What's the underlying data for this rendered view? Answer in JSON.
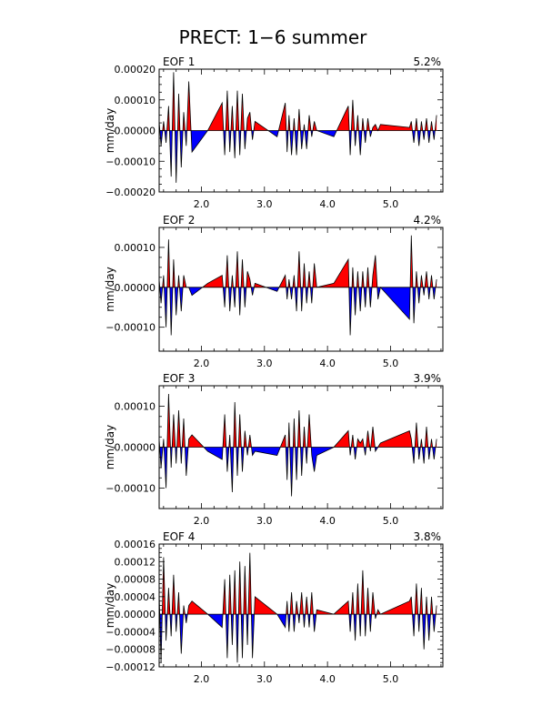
{
  "title": "PRECT: 1−6 summer",
  "colors": {
    "positive": "#ff0000",
    "negative": "#0000ff",
    "line": "#000000"
  },
  "chart_data": {
    "type": "area",
    "xlim": [
      1.33,
      5.83
    ],
    "x_ticks": [
      2.0,
      3.0,
      4.0,
      5.0
    ],
    "x_tick_labels": [
      "2.0",
      "3.0",
      "4.0",
      "5.0"
    ],
    "panels": [
      {
        "label": "EOF 1",
        "variance": "5.2%",
        "ylabel": "mm/day",
        "ylim": [
          -0.0002,
          0.0002
        ],
        "y_ticks": [
          -0.0002,
          -0.0001,
          0.0,
          0.0001,
          0.0002
        ],
        "y_tick_labels": [
          "−0.00020",
          "−0.00010",
          "0.00000",
          "0.00010",
          "0.00020"
        ],
        "x": [
          1.33,
          1.36,
          1.4,
          1.44,
          1.48,
          1.52,
          1.56,
          1.6,
          1.64,
          1.68,
          1.72,
          1.76,
          1.8,
          1.85,
          2.1,
          2.33,
          2.37,
          2.41,
          2.45,
          2.49,
          2.53,
          2.57,
          2.61,
          2.65,
          2.69,
          2.73,
          2.77,
          2.81,
          2.85,
          3.2,
          3.33,
          3.36,
          3.39,
          3.43,
          3.47,
          3.51,
          3.55,
          3.59,
          3.63,
          3.67,
          3.71,
          3.75,
          3.79,
          3.83,
          4.1,
          4.33,
          4.36,
          4.4,
          4.44,
          4.48,
          4.52,
          4.56,
          4.6,
          4.64,
          4.68,
          4.72,
          4.76,
          4.8,
          4.84,
          5.3,
          5.33,
          5.37,
          5.41,
          5.45,
          5.49,
          5.53,
          5.57,
          5.61,
          5.65,
          5.69,
          5.73
        ],
        "values": [
          3e-05,
          -5e-05,
          3e-05,
          -4e-05,
          8e-05,
          -0.00015,
          0.00019,
          -0.00017,
          0.00012,
          -0.00012,
          6e-05,
          -5e-05,
          0.00016,
          -7e-05,
          0.0,
          9e-05,
          -8e-05,
          0.00013,
          -7e-05,
          8e-05,
          -9e-05,
          0.00013,
          -8e-05,
          0.00012,
          -6e-05,
          4e-05,
          6e-05,
          -3e-05,
          3e-05,
          -2e-05,
          9e-05,
          -7e-05,
          5e-05,
          -8e-05,
          4e-05,
          -8e-05,
          7e-05,
          -6e-05,
          2e-05,
          -6e-05,
          5e-05,
          -2e-05,
          3e-05,
          0.0,
          -2e-05,
          8e-05,
          -8e-05,
          0.0001,
          -5e-05,
          5e-05,
          -8e-05,
          4e-05,
          -4e-05,
          4e-05,
          -2e-05,
          1e-05,
          2e-05,
          0.0,
          2e-05,
          1e-05,
          3e-05,
          -4e-05,
          4e-05,
          -5e-05,
          3e-05,
          -3e-05,
          4e-05,
          -4e-05,
          3e-05,
          -3e-05,
          5e-05
        ]
      },
      {
        "label": "EOF 2",
        "variance": "4.2%",
        "ylabel": "mm/day",
        "ylim": [
          -0.00016,
          0.00015
        ],
        "y_ticks": [
          -0.0001,
          0.0,
          0.0001
        ],
        "y_tick_labels": [
          "−0.00010",
          "0.00000",
          "0.00010"
        ],
        "x": [
          1.33,
          1.36,
          1.4,
          1.44,
          1.48,
          1.52,
          1.56,
          1.6,
          1.64,
          1.68,
          1.72,
          1.76,
          1.8,
          1.85,
          2.1,
          2.33,
          2.37,
          2.41,
          2.45,
          2.49,
          2.53,
          2.57,
          2.61,
          2.65,
          2.69,
          2.73,
          2.77,
          2.81,
          2.85,
          3.2,
          3.33,
          3.36,
          3.39,
          3.43,
          3.47,
          3.51,
          3.55,
          3.59,
          3.63,
          3.67,
          3.71,
          3.75,
          3.79,
          3.83,
          4.1,
          4.33,
          4.36,
          4.4,
          4.44,
          4.48,
          4.52,
          4.56,
          4.6,
          4.64,
          4.68,
          4.72,
          4.76,
          4.8,
          4.84,
          5.3,
          5.33,
          5.37,
          5.41,
          5.45,
          5.49,
          5.53,
          5.57,
          5.61,
          5.65,
          5.69,
          5.73
        ],
        "values": [
          2e-05,
          -4e-05,
          3e-05,
          -0.0001,
          0.00012,
          -0.00012,
          7e-05,
          -7e-05,
          3e-05,
          -6e-05,
          3e-05,
          0.0,
          0.0,
          -2e-05,
          1e-05,
          3e-05,
          -5e-05,
          8e-05,
          -6e-05,
          3e-05,
          -5e-05,
          9e-05,
          -7e-05,
          7e-05,
          -5e-05,
          4e-05,
          2e-05,
          -2e-05,
          1e-05,
          -1e-05,
          3e-05,
          -3e-05,
          2e-05,
          -3e-05,
          3e-05,
          -6e-05,
          9e-05,
          -6e-05,
          6e-05,
          -4e-05,
          4e-05,
          -4e-05,
          6e-05,
          0.0,
          1e-05,
          7e-05,
          -0.00012,
          5e-05,
          -7e-05,
          4e-05,
          -6e-05,
          4e-05,
          -5e-05,
          5e-05,
          -5e-05,
          3e-05,
          8e-05,
          -3e-05,
          0.0,
          -8e-05,
          0.00013,
          -9e-05,
          4e-05,
          -4e-05,
          3e-05,
          -2e-05,
          4e-05,
          -3e-05,
          3e-05,
          -3e-05,
          2e-05
        ]
      },
      {
        "label": "EOF 3",
        "variance": "3.9%",
        "ylabel": "mm/day",
        "ylim": [
          -0.00015,
          0.00015
        ],
        "y_ticks": [
          -0.0001,
          0.0,
          0.0001
        ],
        "y_tick_labels": [
          "−0.00010",
          "0.00000",
          "0.00010"
        ],
        "x": [
          1.33,
          1.36,
          1.4,
          1.44,
          1.48,
          1.52,
          1.56,
          1.6,
          1.64,
          1.68,
          1.72,
          1.76,
          1.8,
          1.85,
          2.1,
          2.33,
          2.37,
          2.41,
          2.45,
          2.49,
          2.53,
          2.57,
          2.61,
          2.65,
          2.69,
          2.73,
          2.77,
          2.81,
          2.85,
          3.2,
          3.33,
          3.36,
          3.39,
          3.43,
          3.47,
          3.51,
          3.55,
          3.59,
          3.63,
          3.67,
          3.71,
          3.75,
          3.79,
          3.83,
          4.1,
          4.33,
          4.36,
          4.4,
          4.44,
          4.48,
          4.52,
          4.56,
          4.6,
          4.64,
          4.68,
          4.72,
          4.76,
          4.8,
          4.84,
          5.3,
          5.33,
          5.37,
          5.41,
          5.45,
          5.49,
          5.53,
          5.57,
          5.61,
          5.65,
          5.69,
          5.73
        ],
        "values": [
          2e-05,
          -5e-05,
          2e-05,
          -0.0001,
          0.00013,
          -5e-05,
          8e-05,
          -4e-05,
          9e-05,
          -4e-05,
          7e-05,
          -7e-05,
          2e-05,
          3e-05,
          -1e-05,
          -3e-05,
          8e-05,
          -6e-05,
          3e-05,
          -0.00011,
          0.00011,
          -7e-05,
          8e-05,
          -6e-05,
          4e-05,
          -2e-05,
          3e-05,
          -2e-05,
          -1e-05,
          -2e-05,
          3e-05,
          -8e-05,
          6e-05,
          -0.00012,
          7e-05,
          -8e-05,
          9e-05,
          -7e-05,
          5e-05,
          -4e-05,
          8e-05,
          -2e-05,
          -6e-05,
          -2e-05,
          0.0,
          4e-05,
          -2e-05,
          3e-05,
          -3e-05,
          2e-05,
          1e-05,
          2e-05,
          -2e-05,
          4e-05,
          -1e-05,
          5e-05,
          -1e-05,
          0.0,
          1e-05,
          4e-05,
          2e-05,
          -4e-05,
          6e-05,
          -3e-05,
          2e-05,
          -4e-05,
          5e-05,
          -3e-05,
          2e-05,
          -3e-05,
          2e-05
        ]
      },
      {
        "label": "EOF 4",
        "variance": "3.8%",
        "ylabel": "mm/day",
        "ylim": [
          -0.00012,
          0.00016
        ],
        "y_ticks": [
          -0.00012,
          -8e-05,
          -4e-05,
          0.0,
          4e-05,
          8e-05,
          0.00012,
          0.00016
        ],
        "y_tick_labels": [
          "−0.00012",
          "−0.00008",
          "−0.00004",
          "0.00000",
          "0.00004",
          "0.00008",
          "0.00012",
          "0.00016"
        ],
        "x": [
          1.33,
          1.36,
          1.4,
          1.44,
          1.48,
          1.52,
          1.56,
          1.6,
          1.64,
          1.68,
          1.72,
          1.76,
          1.8,
          1.85,
          2.1,
          2.33,
          2.37,
          2.41,
          2.45,
          2.49,
          2.53,
          2.57,
          2.61,
          2.65,
          2.69,
          2.73,
          2.77,
          2.81,
          2.85,
          3.2,
          3.33,
          3.36,
          3.39,
          3.43,
          3.47,
          3.51,
          3.55,
          3.59,
          3.63,
          3.67,
          3.71,
          3.75,
          3.79,
          3.83,
          4.1,
          4.33,
          4.36,
          4.4,
          4.44,
          4.48,
          4.52,
          4.56,
          4.6,
          4.64,
          4.68,
          4.72,
          4.76,
          4.8,
          4.84,
          5.3,
          5.33,
          5.37,
          5.41,
          5.45,
          5.49,
          5.53,
          5.57,
          5.61,
          5.65,
          5.69,
          5.73
        ],
        "values": [
          5e-05,
          -0.00011,
          0.00013,
          -6e-05,
          6e-05,
          -5e-05,
          9e-05,
          -4e-05,
          5e-05,
          -9e-05,
          2e-05,
          -2e-05,
          2e-05,
          3e-05,
          0.0,
          -3e-05,
          8e-05,
          -0.0001,
          9e-05,
          -7e-05,
          0.0001,
          -0.00011,
          0.00012,
          -0.0001,
          0.00011,
          -7e-05,
          0.00014,
          -0.0001,
          4e-05,
          0.0,
          -3e-05,
          3e-05,
          -4e-05,
          5e-05,
          -4e-05,
          3e-05,
          -2e-05,
          5e-05,
          -3e-05,
          4e-05,
          -3e-05,
          5e-05,
          -4e-05,
          1e-05,
          0.0,
          3e-05,
          -4e-05,
          5e-05,
          -6e-05,
          7e-05,
          -5e-05,
          0.0001,
          -5e-05,
          6e-05,
          -4e-05,
          5e-05,
          -1e-05,
          1e-05,
          0.0,
          3e-05,
          4e-05,
          -5e-05,
          7e-05,
          -4e-05,
          6e-05,
          -8e-05,
          4e-05,
          -6e-05,
          4e-05,
          -4e-05,
          2e-05
        ]
      }
    ]
  }
}
